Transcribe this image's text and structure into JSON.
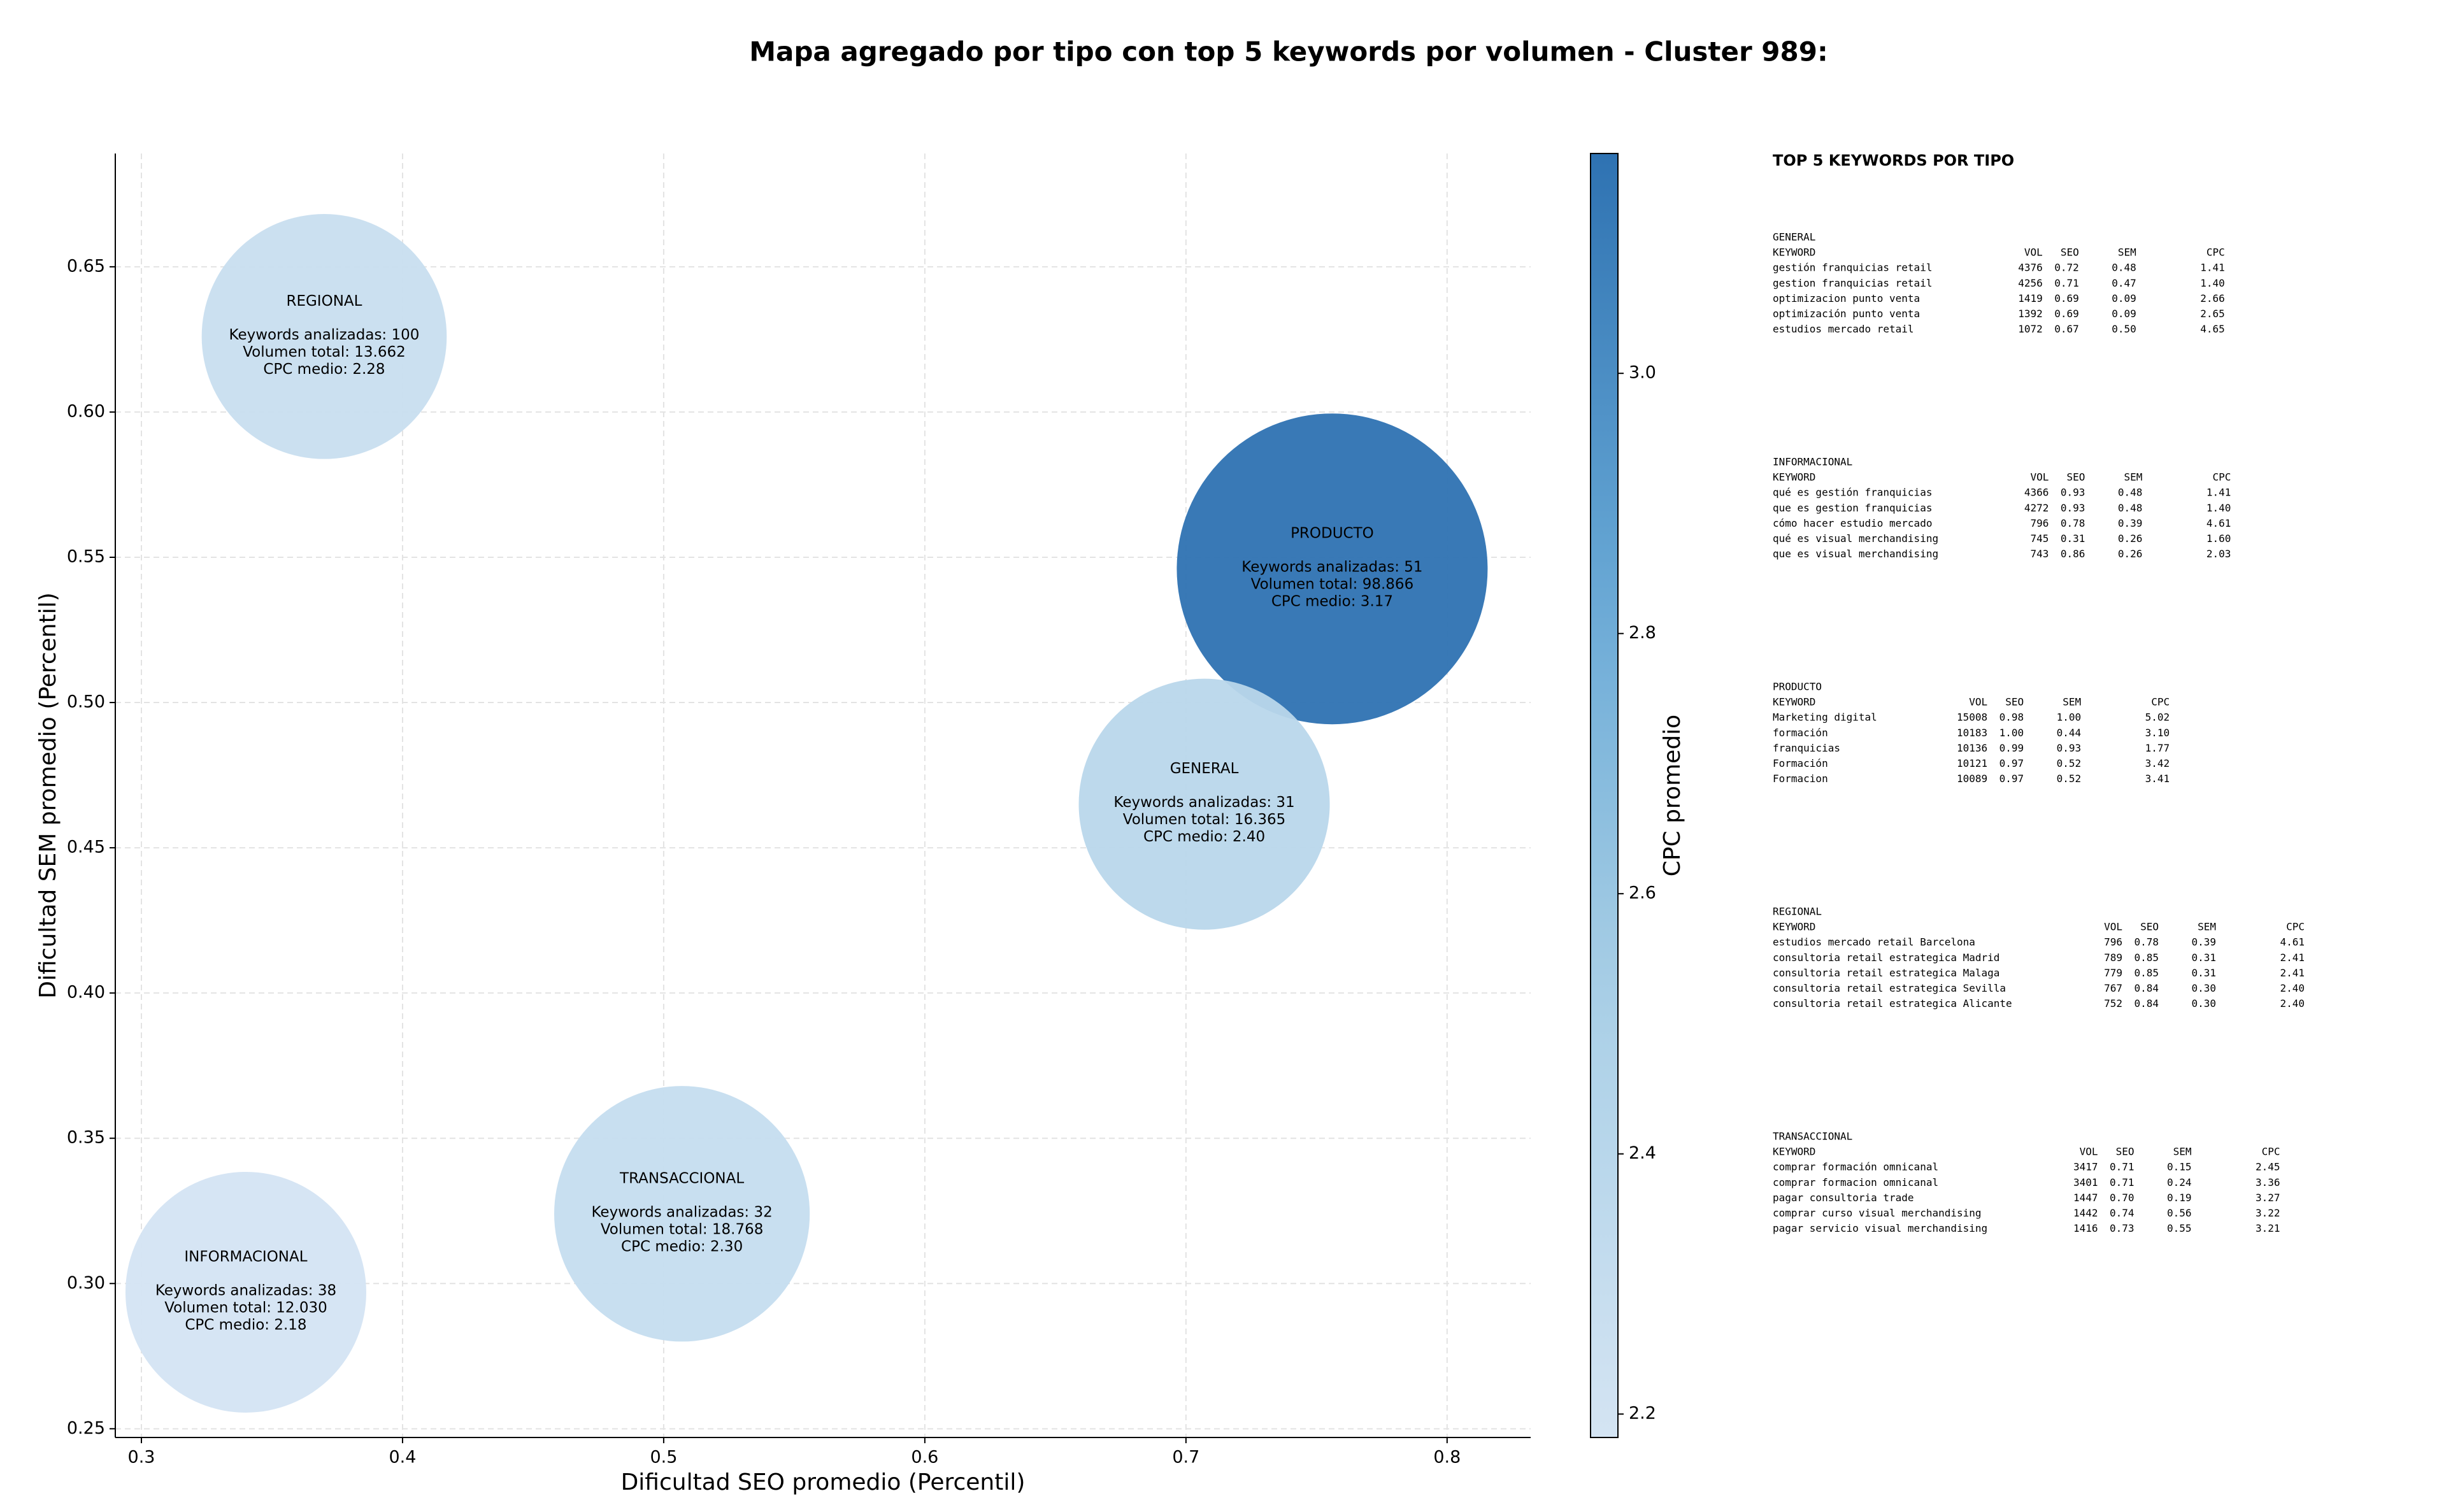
{
  "chart_data": {
    "type": "bubble",
    "title": "Mapa agregado por tipo con top 5 keywords por volumen - Cluster 989:",
    "xlabel": "Dificultad SEO promedio (Percentil)",
    "ylabel": "Dificultad SEM promedio (Percentil)",
    "xlim": [
      0.29,
      0.832
    ],
    "ylim": [
      0.247,
      0.689
    ],
    "xticks": [
      0.3,
      0.4,
      0.5,
      0.6,
      0.7,
      0.8
    ],
    "yticks": [
      0.25,
      {
        "value": 0.3,
        "label": "0.30"
      },
      0.35,
      {
        "value": 0.4,
        "label": "0.40"
      },
      0.45,
      {
        "value": 0.5,
        "label": "0.50"
      },
      0.55,
      {
        "value": 0.6,
        "label": "0.60"
      },
      0.65
    ],
    "grid": true,
    "categories": [
      "REGIONAL",
      "PRODUCTO",
      "GENERAL",
      "TRANSACCIONAL",
      "INFORMACIONAL"
    ],
    "x": [
      0.37,
      0.756,
      0.707,
      0.507,
      0.34
    ],
    "y": [
      0.626,
      0.546,
      0.465,
      0.324,
      0.297
    ],
    "sizes": [
      13662,
      98866,
      16365,
      18768,
      12030
    ],
    "color_values": [
      2.28,
      3.17,
      2.4,
      2.3,
      2.18
    ],
    "annotations": [
      [
        "Keywords analizadas: 100",
        "Volumen total: 13.662",
        "CPC medio: 2.28"
      ],
      [
        "Keywords analizadas: 51",
        "Volumen total: 98.866",
        "CPC medio: 3.17"
      ],
      [
        "Keywords analizadas: 31",
        "Volumen total: 16.365",
        "CPC medio: 2.40"
      ],
      [
        "Keywords analizadas: 32",
        "Volumen total: 18.768",
        "CPC medio: 2.30"
      ],
      [
        "Keywords analizadas: 38",
        "Volumen total: 12.030",
        "CPC medio: 2.18"
      ]
    ],
    "colorbar": {
      "label": "CPC promedio",
      "lim": [
        2.182,
        3.169
      ],
      "colormap": "Blues",
      "ticks": [
        2.2,
        2.4,
        2.6,
        2.8,
        {
          "value": 3,
          "label": "3.0"
        }
      ]
    }
  },
  "keyword_tables": {
    "title": "TOP 5 KEYWORDS POR TIPO",
    "columns": [
      "KEYWORD",
      "VOL",
      "SEO",
      "SEM",
      "CPC"
    ],
    "sections": [
      {
        "name": "GENERAL",
        "rows": [
          [
            "gestión franquicias retail",
            "4376",
            "0.72",
            "0.48",
            "1.41"
          ],
          [
            "gestion franquicias retail",
            "4256",
            "0.71",
            "0.47",
            "1.40"
          ],
          [
            "optimizacion punto venta",
            "1419",
            "0.69",
            "0.09",
            "2.66"
          ],
          [
            "optimización punto venta",
            "1392",
            "0.69",
            "0.09",
            "2.65"
          ],
          [
            "estudios mercado retail",
            "1072",
            "0.67",
            "0.50",
            "4.65"
          ]
        ]
      },
      {
        "name": "INFORMACIONAL",
        "rows": [
          [
            "qué es gestión franquicias",
            "4366",
            "0.93",
            "0.48",
            "1.41"
          ],
          [
            "que es gestion franquicias",
            "4272",
            "0.93",
            "0.48",
            "1.40"
          ],
          [
            "cómo hacer estudio mercado",
            "796",
            "0.78",
            "0.39",
            "4.61"
          ],
          [
            "qué es visual merchandising",
            "745",
            "0.31",
            "0.26",
            "1.60"
          ],
          [
            "que es visual merchandising",
            "743",
            "0.86",
            "0.26",
            "2.03"
          ]
        ]
      },
      {
        "name": "PRODUCTO",
        "rows": [
          [
            "Marketing digital",
            "15008",
            "0.98",
            "1.00",
            "5.02"
          ],
          [
            "formación",
            "10183",
            "1.00",
            "0.44",
            "3.10"
          ],
          [
            "franquicias",
            "10136",
            "0.99",
            "0.93",
            "1.77"
          ],
          [
            "Formación",
            "10121",
            "0.97",
            "0.52",
            "3.42"
          ],
          [
            "Formacion",
            "10089",
            "0.97",
            "0.52",
            "3.41"
          ]
        ]
      },
      {
        "name": "REGIONAL",
        "rows": [
          [
            "estudios mercado retail Barcelona",
            "796",
            "0.78",
            "0.39",
            "4.61"
          ],
          [
            "consultoria retail estrategica Madrid",
            "789",
            "0.85",
            "0.31",
            "2.41"
          ],
          [
            "consultoria retail estrategica Malaga",
            "779",
            "0.85",
            "0.31",
            "2.41"
          ],
          [
            "consultoria retail estrategica Sevilla",
            "767",
            "0.84",
            "0.30",
            "2.40"
          ],
          [
            "consultoria retail estrategica Alicante",
            "752",
            "0.84",
            "0.30",
            "2.40"
          ]
        ]
      },
      {
        "name": "TRANSACCIONAL",
        "rows": [
          [
            "comprar formación omnicanal",
            "3417",
            "0.71",
            "0.15",
            "2.45"
          ],
          [
            "comprar formacion omnicanal",
            "3401",
            "0.71",
            "0.24",
            "3.36"
          ],
          [
            "pagar consultoria trade",
            "1447",
            "0.70",
            "0.19",
            "3.27"
          ],
          [
            "comprar curso visual merchandising",
            "1442",
            "0.74",
            "0.56",
            "3.22"
          ],
          [
            "pagar servicio visual merchandising",
            "1416",
            "0.73",
            "0.55",
            "3.21"
          ]
        ]
      }
    ]
  }
}
